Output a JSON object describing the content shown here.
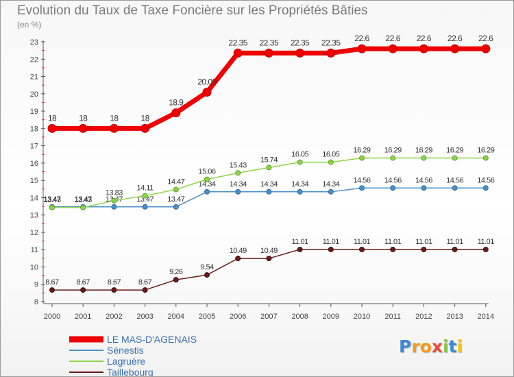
{
  "chart_data": {
    "type": "line",
    "title": "Evolution du Taux de Taxe Foncière sur les Propriétés Bâties",
    "ylabel": "(en %)",
    "xlabel": "",
    "x": [
      "2000",
      "2001",
      "2002",
      "2003",
      "2004",
      "2005",
      "2006",
      "2007",
      "2008",
      "2009",
      "2010",
      "2011",
      "2012",
      "2013",
      "2014"
    ],
    "ylim": [
      8,
      23
    ],
    "yticks": [
      "8",
      "9",
      "10",
      "11",
      "12",
      "13",
      "14",
      "15",
      "16",
      "17",
      "18",
      "19",
      "20",
      "21",
      "22",
      "23"
    ],
    "grid": false,
    "legend_position": "bottom-left",
    "series": [
      {
        "name": "LE MAS-D'AGENAIS",
        "color": "#ee0000",
        "values": [
          18,
          18,
          18,
          18,
          18.9,
          20.09,
          22.35,
          22.35,
          22.35,
          22.35,
          22.6,
          22.6,
          22.6,
          22.6,
          22.6
        ],
        "labels": [
          "18",
          "18",
          "18",
          "18",
          "18.9",
          "20.09",
          "22.35",
          "22.35",
          "22.35",
          "22.35",
          "22.6",
          "22.6",
          "22.6",
          "22.6",
          "22.6"
        ]
      },
      {
        "name": "Sénestis",
        "color": "#4a90c8",
        "values": [
          13.47,
          13.47,
          13.47,
          13.47,
          13.47,
          14.34,
          14.34,
          14.34,
          14.34,
          14.34,
          14.56,
          14.56,
          14.56,
          14.56,
          14.56
        ],
        "labels": [
          "13.47",
          "13.47",
          "13.47",
          "13.47",
          "13.47",
          "14.34",
          "14.34",
          "14.34",
          "14.34",
          "14.34",
          "14.56",
          "14.56",
          "14.56",
          "14.56",
          "14.56"
        ]
      },
      {
        "name": "Lagruère",
        "color": "#8cd448",
        "values": [
          13.43,
          13.43,
          13.83,
          14.11,
          14.47,
          15.06,
          15.43,
          15.74,
          16.05,
          16.05,
          16.29,
          16.29,
          16.29,
          16.29,
          16.29
        ],
        "labels": [
          "13.43",
          "13.43",
          "13.83",
          "14.11",
          "14.47",
          "15.06",
          "15.43",
          "15.74",
          "16.05",
          "16.05",
          "16.29",
          "16.29",
          "16.29",
          "16.29",
          "16.29"
        ]
      },
      {
        "name": "Taillebourg",
        "color": "#6b1a1a",
        "values": [
          8.67,
          8.67,
          8.67,
          8.67,
          9.26,
          9.54,
          10.49,
          10.49,
          11.01,
          11.01,
          11.01,
          11.01,
          11.01,
          11.01,
          11.01
        ],
        "labels": [
          "8.67",
          "8.67",
          "8.67",
          "8.67",
          "9.26",
          "9.54",
          "10.49",
          "10.49",
          "11.01",
          "11.01",
          "11.01",
          "11.01",
          "11.01",
          "11.01",
          "11.01"
        ]
      }
    ]
  },
  "branding": {
    "letters": [
      "P",
      "r",
      "o",
      "x",
      "i",
      "t",
      "i"
    ],
    "colors": [
      "#3b88d8",
      "#f39c12",
      "#f39c12",
      "#e74c3c",
      "#8bc34a",
      "#3b88d8",
      "#f1c40f"
    ]
  }
}
